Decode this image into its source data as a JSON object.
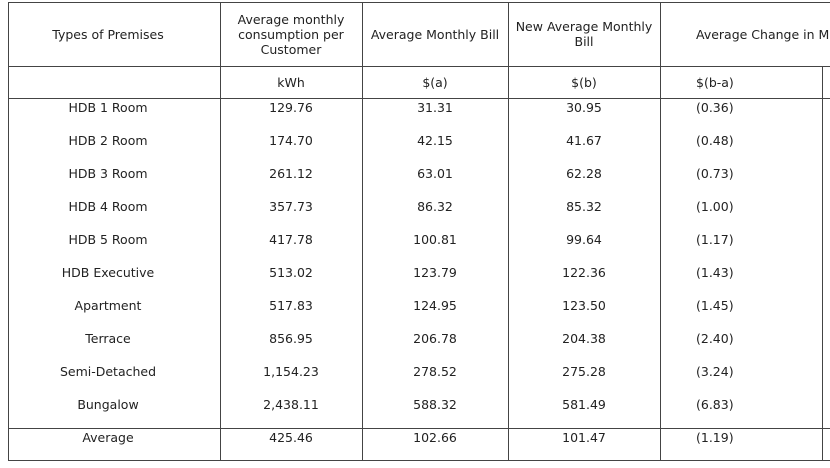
{
  "table": {
    "header": [
      "Types of Premises",
      "Average monthly consumption per Customer",
      "Average Monthly Bill",
      "New Average Monthly Bill",
      "Average Change in M"
    ],
    "units": [
      "",
      "kWh",
      "$(a)",
      "$(b)",
      "$(b-a)"
    ],
    "rows": [
      [
        "HDB 1 Room",
        "129.76",
        "31.31",
        "30.95",
        "(0.36)"
      ],
      [
        "HDB 2 Room",
        "174.70",
        "42.15",
        "41.67",
        "(0.48)"
      ],
      [
        "HDB 3 Room",
        "261.12",
        "63.01",
        "62.28",
        "(0.73)"
      ],
      [
        "HDB 4 Room",
        "357.73",
        "86.32",
        "85.32",
        "(1.00)"
      ],
      [
        "HDB 5 Room",
        "417.78",
        "100.81",
        "99.64",
        "(1.17)"
      ],
      [
        "HDB Executive",
        "513.02",
        "123.79",
        "122.36",
        "(1.43)"
      ],
      [
        "Apartment",
        "517.83",
        "124.95",
        "123.50",
        "(1.45)"
      ],
      [
        "Terrace",
        "856.95",
        "206.78",
        "204.38",
        "(2.40)"
      ],
      [
        "Semi-Detached",
        "1,154.23",
        "278.52",
        "275.28",
        "(3.24)"
      ],
      [
        "Bungalow",
        "2,438.11",
        "588.32",
        "581.49",
        "(6.83)"
      ]
    ],
    "footer": [
      "Average",
      "425.46",
      "102.66",
      "101.47",
      "(1.19)"
    ]
  }
}
